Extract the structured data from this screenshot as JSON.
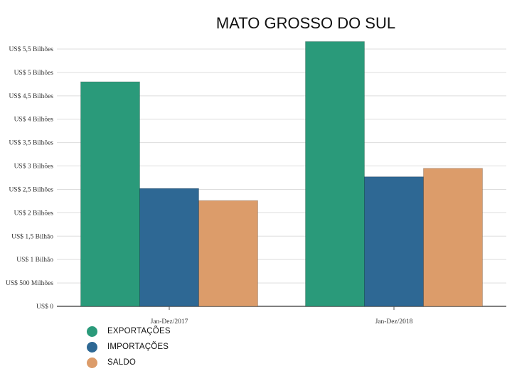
{
  "chart_data": {
    "type": "bar",
    "title": "MATO GROSSO DO SUL",
    "xlabel": "",
    "ylabel": "",
    "categories": [
      "Jan-Dez/2017",
      "Jan-Dez/2018"
    ],
    "series": [
      {
        "name": "EXPORTAÇÕES",
        "color": "#2a9a7a",
        "values": [
          4.8,
          5.66
        ]
      },
      {
        "name": "IMPORTAÇÕES",
        "color": "#2e6894",
        "values": [
          2.52,
          2.77
        ]
      },
      {
        "name": "SALDO",
        "color": "#dc9c6a",
        "values": [
          2.26,
          2.95
        ]
      }
    ],
    "ylim": [
      0,
      5.5
    ],
    "yticks": [
      0,
      0.5,
      1,
      1.5,
      2,
      2.5,
      3,
      3.5,
      4,
      4.5,
      5,
      5.5
    ],
    "ytick_labels": [
      "US$ 0",
      "US$ 500 Milhões",
      "US$ 1 Bilhão",
      "US$ 1,5 Bilhão",
      "US$ 2 Bilhões",
      "US$ 2,5 Bilhões",
      "US$ 3 Bilhões",
      "US$ 3,5 Bilhões",
      "US$ 4 Bilhões",
      "US$ 4,5 Bilhões",
      "US$ 5 Bilhões",
      "US$ 5,5 Bilhões"
    ],
    "grid": true,
    "legend_position": "bottom-left"
  }
}
